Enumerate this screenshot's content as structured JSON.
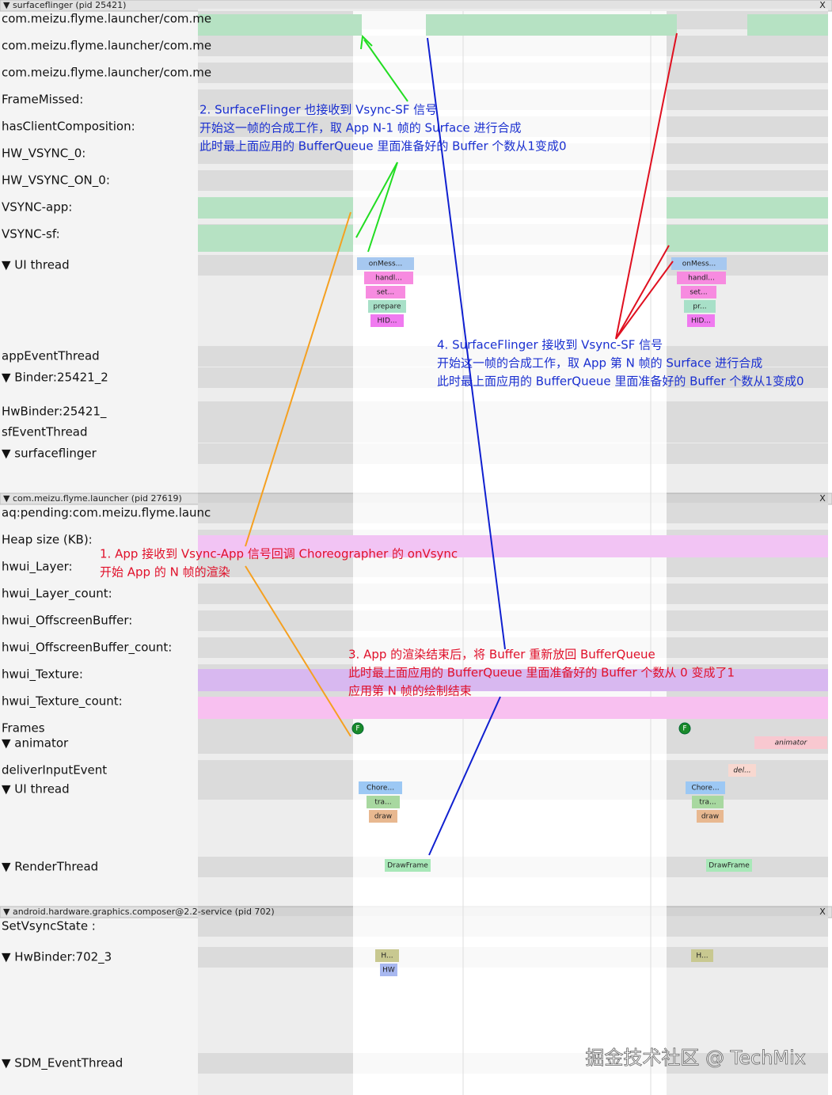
{
  "sections": [
    {
      "header": "▼ surfaceflinger (pid 25421)",
      "close": "X",
      "tracks": [
        "com.meizu.flyme.launcher/com.me",
        "com.meizu.flyme.launcher/com.me",
        "com.meizu.flyme.launcher/com.me",
        "FrameMissed:",
        "hasClientComposition:",
        "HW_VSYNC_0:",
        "HW_VSYNC_ON_0:",
        "VSYNC-app:",
        "VSYNC-sf:",
        "▼  UI thread",
        "appEventThread",
        "▼  Binder:25421_2",
        "HwBinder:25421_",
        "sfEventThread",
        "▼  surfaceflinger"
      ]
    },
    {
      "header": "▼ com.meizu.flyme.launcher (pid 27619)",
      "close": "X",
      "tracks": [
        "aq:pending:com.meizu.flyme.launc",
        "Heap size (KB):",
        "hwui_Layer:",
        "hwui_Layer_count:",
        "hwui_OffscreenBuffer:",
        "hwui_OffscreenBuffer_count:",
        "hwui_Texture:",
        "hwui_Texture_count:",
        "Frames",
        "▼  animator",
        "deliverInputEvent",
        "▼  UI thread",
        "▼  RenderThread"
      ]
    },
    {
      "header": "▼ android.hardware.graphics.composer@2.2-service (pid 702)",
      "close": "X",
      "tracks": [
        "SetVsyncState :",
        "▼  HwBinder:702_3",
        "▼  SDM_EventThread"
      ]
    }
  ],
  "slices": [
    "onMess...",
    "handl...",
    "set...",
    "prepare",
    "HID...",
    "onMess...",
    "handl...",
    "set...",
    "pr...",
    "HID...",
    "Chore...",
    "tra...",
    "draw",
    "Chore...",
    "tra...",
    "draw",
    "DrawFrame",
    "DrawFrame",
    "H...",
    "HW",
    "H...",
    "animator",
    "del...",
    "F",
    "F"
  ],
  "annotations": [
    {
      "lines": [
        "2. SurfaceFlinger 也接收到 Vsync-SF 信号",
        "开始这一帧的合成工作，取 App N-1 帧的 Surface 进行合成",
        "此时最上面应用的 BufferQueue 里面准备好的 Buffer 个数从1变成0"
      ]
    },
    {
      "lines": [
        "4. SurfaceFlinger 接收到 Vsync-SF 信号",
        "开始这一帧的合成工作，取 App 第 N 帧的 Surface 进行合成",
        "此时最上面应用的 BufferQueue 里面准备好的 Buffer 个数从1变成0"
      ]
    },
    {
      "lines": [
        "1. App 接收到 Vsync-App 信号回调 Choreographer 的 onVsync",
        "开始 App 的 N 帧的渲染"
      ]
    },
    {
      "lines": [
        "3.  App 的渲染结束后，将 Buffer 重新放回 BufferQueue",
        "此时最上面应用的 BufferQueue 里面准备好的 Buffer 个数从 0 变成了1",
        "应用第 N 帧的绘制结束"
      ]
    }
  ],
  "watermark": "掘金技术社区 @ TechMix"
}
